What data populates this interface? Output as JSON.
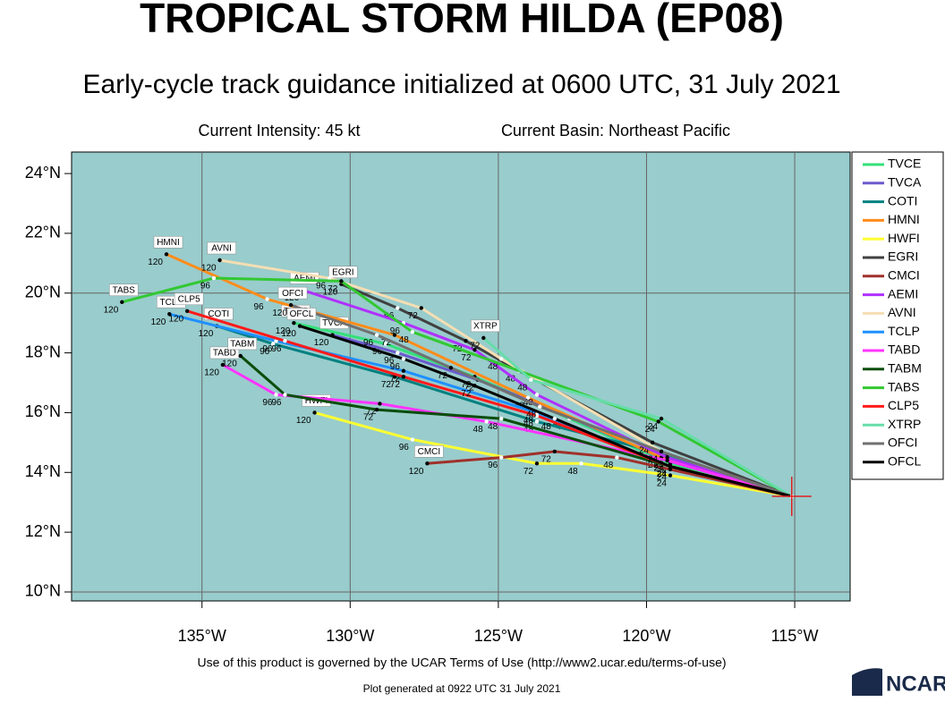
{
  "chart_data": {
    "type": "line",
    "title": "TROPICAL STORM HILDA (EP08)",
    "subtitle": "Early-cycle track guidance initialized at 0600 UTC, 31 July 2021",
    "intensity": "Current Intensity: 45 kt",
    "basin": "Current Basin: Northeast Pacific",
    "terms": "Use of this product is governed by the UCAR Terms of Use (http://www2.ucar.edu/terms-of-use)",
    "generated": "Plot generated at 0922 UTC  31 July 2021",
    "logo": "NCAR",
    "xlim": [
      -139.4,
      -113.13
    ],
    "ylim": [
      9.7,
      24.72
    ],
    "xticks": [
      {
        "value": -135,
        "label": "135°W"
      },
      {
        "value": -130,
        "label": "130°W"
      },
      {
        "value": -125,
        "label": "125°W"
      },
      {
        "value": -120,
        "label": "120°W"
      },
      {
        "value": -115,
        "label": "115°W"
      }
    ],
    "yticks": [
      {
        "value": 10,
        "label": "10°N"
      },
      {
        "value": 12,
        "label": "12°N"
      },
      {
        "value": 14,
        "label": "14°N"
      },
      {
        "value": 16,
        "label": "16°N"
      },
      {
        "value": 18,
        "label": "18°N"
      },
      {
        "value": 20,
        "label": "20°N"
      },
      {
        "value": 22,
        "label": "22°N"
      },
      {
        "value": 24,
        "label": "24°N"
      }
    ],
    "hours": [
      0,
      24,
      48,
      72,
      96,
      120
    ],
    "series": [
      {
        "name": "TVCE",
        "color": "#33e07a",
        "x": [
          -115.1,
          -119.2,
          -122.6,
          -125.8,
          -128.8,
          -131.9
        ],
        "values": [
          13.2,
          14.3,
          15.8,
          17.2,
          18.3,
          19.0
        ]
      },
      {
        "name": "TVCA",
        "color": "#6a5acd",
        "x": [
          -115.1,
          -119.3,
          -122.7,
          -125.7,
          -128.4,
          -130.6
        ],
        "values": [
          13.2,
          14.4,
          15.9,
          17.1,
          18.0,
          18.6
        ]
      },
      {
        "name": "COTI",
        "color": "#008080",
        "x": [
          -115.1,
          -119.3,
          -123.7,
          -128.5,
          -132.6,
          -134.5
        ],
        "values": [
          13.2,
          14.6,
          15.7,
          17.2,
          18.3,
          18.9
        ]
      },
      {
        "name": "HMNI",
        "color": "#ff8c1a",
        "x": [
          -115.1,
          -119.5,
          -124.0,
          -128.5,
          -132.8,
          -136.2
        ],
        "values": [
          13.2,
          14.5,
          16.5,
          18.6,
          19.8,
          21.3
        ]
      },
      {
        "name": "HWFI",
        "color": "#ffff33",
        "x": [
          -115.1,
          -119.2,
          -122.2,
          -123.7,
          -127.9,
          -131.2
        ],
        "values": [
          13.2,
          13.9,
          14.3,
          14.3,
          15.1,
          16.0
        ]
      },
      {
        "name": "EGRI",
        "color": "#404040",
        "x": [
          -115.1,
          -119.8,
          -124.3,
          -126.1,
          -128.4,
          -130.3
        ],
        "values": [
          13.2,
          15.0,
          17.4,
          18.4,
          19.5,
          20.3
        ]
      },
      {
        "name": "CMCI",
        "color": "#a0302a",
        "x": [
          -115.1,
          -119.2,
          -121.0,
          -123.1,
          -124.9,
          -127.4
        ],
        "values": [
          13.2,
          14.1,
          14.5,
          14.7,
          14.5,
          14.3
        ]
      },
      {
        "name": "AEMI",
        "color": "#b030ff",
        "x": [
          -115.1,
          -119.3,
          -123.7,
          -125.8,
          -128.2,
          -131.6
        ],
        "values": [
          13.2,
          14.5,
          16.6,
          18.1,
          19.0,
          20.1
        ]
      },
      {
        "name": "AVNI",
        "color": "#f5deb3",
        "x": [
          -115.1,
          -119.5,
          -124.9,
          -127.6,
          -130.7,
          -134.4
        ],
        "values": [
          13.2,
          14.7,
          17.8,
          19.5,
          20.5,
          21.1
        ]
      },
      {
        "name": "TCLP",
        "color": "#1e90ff",
        "x": [
          -115.1,
          -119.2,
          -123.7,
          -128.2,
          -132.5,
          -136.1
        ],
        "values": [
          13.2,
          14.2,
          16.0,
          17.4,
          18.4,
          19.3
        ]
      },
      {
        "name": "TABD",
        "color": "#ff33ff",
        "x": [
          -115.1,
          -119.3,
          -125.4,
          -129.0,
          -132.5,
          -134.3
        ],
        "values": [
          13.2,
          14.4,
          15.7,
          16.3,
          16.6,
          17.6
        ]
      },
      {
        "name": "TABM",
        "color": "#0a4d0a",
        "x": [
          -115.1,
          -119.2,
          -124.9,
          -129.1,
          -132.2,
          -133.7
        ],
        "values": [
          13.2,
          14.2,
          15.8,
          16.1,
          16.6,
          17.9
        ]
      },
      {
        "name": "TABS",
        "color": "#32c832",
        "x": [
          -115.1,
          -119.6,
          -127.9,
          -130.3,
          -134.6,
          -137.7
        ],
        "values": [
          13.2,
          15.7,
          18.7,
          20.4,
          20.5,
          19.7
        ]
      },
      {
        "name": "CLP5",
        "color": "#ff1a1a",
        "x": [
          -115.1,
          -119.2,
          -123.7,
          -128.2,
          -132.2,
          -135.5
        ],
        "values": [
          13.2,
          14.2,
          15.9,
          17.2,
          18.4,
          19.4
        ]
      },
      {
        "name": "XTRP",
        "color": "#66ddaa",
        "x": [
          -115.1,
          -119.5,
          -123.9,
          -125.5,
          null,
          null
        ],
        "values": [
          13.2,
          15.8,
          17.1,
          18.5,
          null,
          null
        ]
      },
      {
        "name": "OFCI",
        "color": "#707070",
        "x": [
          -115.1,
          -119.5,
          -123.6,
          -126.6,
          -129.1,
          -132.0
        ],
        "values": [
          13.2,
          14.7,
          16.2,
          17.5,
          18.6,
          19.6
        ]
      },
      {
        "name": "OFCL",
        "color": "#000000",
        "x": [
          -115.1,
          -119.2,
          -123.1,
          -125.8,
          -128.2,
          -131.7
        ],
        "values": [
          13.2,
          14.2,
          15.8,
          16.9,
          17.8,
          18.9
        ]
      }
    ]
  }
}
